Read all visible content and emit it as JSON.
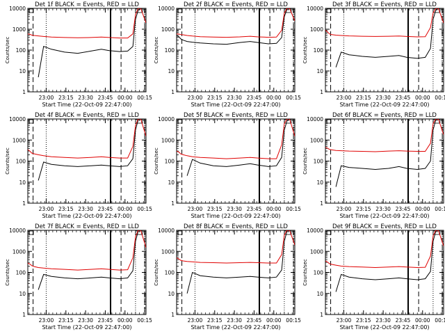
{
  "colors": {
    "events": "#000000",
    "lld": "#e00000",
    "axis": "#000000",
    "background": "#ffffff"
  },
  "chart_data": [
    {
      "type": "line",
      "title": "Det 1f BLACK = Events, RED = LLD",
      "xlabel": "Start Time (22-Oct-09 22:47:00)",
      "ylabel": "Counts/sec",
      "x_ticks": [
        "23:00",
        "23:15",
        "23:30",
        "23:45",
        "00:00",
        "00:15"
      ],
      "y_ticks": [
        "1",
        "10",
        "100",
        "1000",
        "10000"
      ],
      "ylim": [
        1,
        10000
      ],
      "yscale": "log",
      "x": [
        0,
        2,
        3,
        5,
        8,
        12,
        18,
        28,
        38,
        48,
        56,
        62,
        70,
        76,
        80,
        82,
        84,
        86,
        90
      ],
      "series": [
        {
          "name": "Events",
          "values": [
            null,
            null,
            null,
            null,
            5,
            150,
            110,
            80,
            70,
            90,
            110,
            95,
            85,
            90,
            150,
            3000,
            8000,
            10000,
            null
          ]
        },
        {
          "name": "LLD",
          "values": [
            600,
            560,
            520,
            500,
            480,
            450,
            420,
            400,
            390,
            400,
            420,
            400,
            380,
            380,
            600,
            5000,
            10000,
            10000,
            2000
          ]
        }
      ],
      "markers": {
        "dashed": [
          4,
          71,
          89
        ],
        "dotted": [
          14,
          82
        ],
        "solid": [
          63
        ]
      }
    },
    {
      "type": "line",
      "title": "Det 2f BLACK = Events, RED = LLD",
      "xlabel": "Start Time (22-Oct-09 22:47:00)",
      "ylabel": "Counts/sec",
      "x_ticks": [
        "23:00",
        "23:15",
        "23:30",
        "23:45",
        "00:00",
        "00:15"
      ],
      "y_ticks": [
        "1",
        "10",
        "100",
        "1000",
        "10000"
      ],
      "ylim": [
        1,
        10000
      ],
      "yscale": "log",
      "x": [
        0,
        2,
        3,
        5,
        8,
        12,
        18,
        28,
        38,
        48,
        56,
        62,
        70,
        76,
        80,
        82,
        84,
        86,
        90
      ],
      "series": [
        {
          "name": "Events",
          "values": [
            500,
            420,
            350,
            300,
            260,
            240,
            220,
            200,
            190,
            230,
            260,
            230,
            200,
            210,
            400,
            4000,
            9000,
            10000,
            null
          ]
        },
        {
          "name": "LLD",
          "values": [
            600,
            580,
            560,
            540,
            500,
            470,
            440,
            420,
            410,
            430,
            460,
            430,
            410,
            420,
            900,
            6000,
            10000,
            10000,
            2500
          ]
        }
      ],
      "markers": {
        "dashed": [
          4,
          71,
          89
        ],
        "dotted": [
          14,
          82
        ],
        "solid": [
          63
        ]
      }
    },
    {
      "type": "line",
      "title": "Det 3f BLACK = Events, RED = LLD",
      "xlabel": "Start Time (22-Oct-09 22:47:00)",
      "ylabel": "Counts/sec",
      "x_ticks": [
        "23:00",
        "23:15",
        "23:30",
        "23:45",
        "00:00",
        "00:15"
      ],
      "y_ticks": [
        "1",
        "10",
        "100",
        "1000",
        "10000"
      ],
      "ylim": [
        1,
        10000
      ],
      "yscale": "log",
      "x": [
        0,
        2,
        3,
        5,
        8,
        12,
        18,
        28,
        38,
        48,
        56,
        62,
        70,
        76,
        80,
        82,
        84,
        86,
        90
      ],
      "series": [
        {
          "name": "Events",
          "values": [
            null,
            null,
            null,
            null,
            15,
            80,
            60,
            50,
            45,
            50,
            55,
            45,
            40,
            45,
            120,
            3000,
            8000,
            10000,
            null
          ]
        },
        {
          "name": "LLD",
          "values": [
            900,
            700,
            600,
            550,
            520,
            500,
            480,
            460,
            450,
            460,
            470,
            450,
            430,
            440,
            1200,
            6000,
            10000,
            10000,
            2000
          ]
        }
      ],
      "markers": {
        "dashed": [
          4,
          71,
          89
        ],
        "dotted": [
          14,
          82
        ],
        "solid": [
          63
        ]
      }
    },
    {
      "type": "line",
      "title": "Det 4f BLACK = Events, RED = LLD",
      "xlabel": "Start Time (22-Oct-09 22:47:00)",
      "ylabel": "Counts/sec",
      "x_ticks": [
        "23:00",
        "23:15",
        "23:30",
        "23:45",
        "00:00",
        "00:15"
      ],
      "y_ticks": [
        "1",
        "10",
        "100",
        "1000",
        "10000"
      ],
      "ylim": [
        1,
        10000
      ],
      "yscale": "log",
      "x": [
        0,
        2,
        3,
        5,
        8,
        12,
        18,
        28,
        38,
        48,
        56,
        62,
        70,
        76,
        80,
        82,
        84,
        86,
        90
      ],
      "series": [
        {
          "name": "Events",
          "values": [
            null,
            null,
            null,
            null,
            12,
            90,
            70,
            60,
            55,
            60,
            65,
            60,
            55,
            60,
            130,
            3000,
            9000,
            10000,
            null
          ]
        },
        {
          "name": "LLD",
          "values": [
            350,
            280,
            240,
            220,
            200,
            180,
            160,
            150,
            140,
            150,
            160,
            150,
            140,
            140,
            500,
            5000,
            10000,
            10000,
            1500
          ]
        }
      ],
      "markers": {
        "dashed": [
          4,
          71,
          89
        ],
        "dotted": [
          14,
          82
        ],
        "solid": [
          63
        ]
      }
    },
    {
      "type": "line",
      "title": "Det 5f BLACK = Events, RED = LLD",
      "xlabel": "Start Time (22-Oct-09 22:47:00)",
      "ylabel": "Counts/sec",
      "x_ticks": [
        "23:00",
        "23:15",
        "23:30",
        "23:45",
        "00:00",
        "00:15"
      ],
      "y_ticks": [
        "1",
        "10",
        "100",
        "1000",
        "10000"
      ],
      "ylim": [
        1,
        10000
      ],
      "yscale": "log",
      "x": [
        0,
        2,
        3,
        5,
        8,
        12,
        18,
        28,
        38,
        48,
        56,
        62,
        70,
        76,
        80,
        82,
        84,
        86,
        90
      ],
      "series": [
        {
          "name": "Events",
          "values": [
            null,
            null,
            null,
            null,
            20,
            120,
            80,
            60,
            55,
            65,
            75,
            65,
            55,
            60,
            150,
            3000,
            8000,
            10000,
            null
          ]
        },
        {
          "name": "LLD",
          "values": [
            300,
            260,
            220,
            200,
            180,
            160,
            150,
            140,
            130,
            140,
            150,
            140,
            130,
            130,
            600,
            6000,
            10000,
            10000,
            1500
          ]
        }
      ],
      "markers": {
        "dashed": [
          4,
          71,
          89
        ],
        "dotted": [
          14,
          82
        ],
        "solid": [
          63
        ]
      }
    },
    {
      "type": "line",
      "title": "Det 6f BLACK = Events, RED = LLD",
      "xlabel": "Start Time (22-Oct-09 22:47:00)",
      "ylabel": "Counts/sec",
      "x_ticks": [
        "23:00",
        "23:15",
        "23:30",
        "23:45",
        "00:00",
        "00:15"
      ],
      "y_ticks": [
        "1",
        "10",
        "100",
        "1000",
        "10000"
      ],
      "ylim": [
        1,
        10000
      ],
      "yscale": "log",
      "x": [
        0,
        2,
        3,
        5,
        8,
        12,
        18,
        28,
        38,
        48,
        56,
        62,
        70,
        76,
        80,
        82,
        84,
        86,
        90
      ],
      "series": [
        {
          "name": "Events",
          "values": [
            null,
            null,
            null,
            null,
            6,
            60,
            50,
            45,
            40,
            45,
            55,
            45,
            40,
            45,
            100,
            3000,
            9000,
            10000,
            null
          ]
        },
        {
          "name": "LLD",
          "values": [
            450,
            400,
            360,
            340,
            320,
            310,
            300,
            290,
            280,
            300,
            310,
            300,
            290,
            290,
            700,
            6000,
            10000,
            10000,
            1800
          ]
        }
      ],
      "markers": {
        "dashed": [
          4,
          71,
          89
        ],
        "dotted": [
          14,
          82
        ],
        "solid": [
          63
        ]
      }
    },
    {
      "type": "line",
      "title": "Det 7f BLACK = Events, RED = LLD",
      "xlabel": "Start Time (22-Oct-09 22:47:00)",
      "ylabel": "Counts/sec",
      "x_ticks": [
        "23:00",
        "23:15",
        "23:30",
        "23:45",
        "00:00",
        "00:15"
      ],
      "y_ticks": [
        "1",
        "10",
        "100",
        "1000",
        "10000"
      ],
      "ylim": [
        1,
        10000
      ],
      "yscale": "log",
      "x": [
        0,
        2,
        3,
        5,
        8,
        12,
        18,
        28,
        38,
        48,
        56,
        62,
        70,
        76,
        80,
        82,
        84,
        86,
        90
      ],
      "series": [
        {
          "name": "Events",
          "values": [
            null,
            null,
            null,
            null,
            15,
            80,
            65,
            55,
            50,
            55,
            60,
            55,
            50,
            55,
            120,
            3000,
            9000,
            10000,
            null
          ]
        },
        {
          "name": "LLD",
          "values": [
            280,
            240,
            210,
            190,
            170,
            160,
            150,
            140,
            130,
            140,
            150,
            140,
            130,
            135,
            500,
            5000,
            10000,
            10000,
            1500
          ]
        }
      ],
      "markers": {
        "dashed": [
          4,
          71,
          89
        ],
        "dotted": [
          14,
          82
        ],
        "solid": [
          63
        ]
      }
    },
    {
      "type": "line",
      "title": "Det 8f BLACK = Events, RED = LLD",
      "xlabel": "Start Time (22-Oct-09 22:47:00)",
      "ylabel": "Counts/sec",
      "x_ticks": [
        "23:00",
        "23:15",
        "23:30",
        "23:45",
        "00:00",
        "00:15"
      ],
      "y_ticks": [
        "1",
        "10",
        "100",
        "1000",
        "10000"
      ],
      "ylim": [
        1,
        10000
      ],
      "yscale": "log",
      "x": [
        0,
        2,
        3,
        5,
        8,
        12,
        18,
        28,
        38,
        48,
        56,
        62,
        70,
        76,
        80,
        82,
        84,
        86,
        90
      ],
      "series": [
        {
          "name": "Events",
          "values": [
            null,
            null,
            null,
            null,
            10,
            100,
            70,
            60,
            55,
            60,
            65,
            60,
            55,
            60,
            130,
            3000,
            9000,
            10000,
            null
          ]
        },
        {
          "name": "LLD",
          "values": [
            500,
            420,
            380,
            350,
            330,
            320,
            300,
            290,
            280,
            290,
            300,
            290,
            280,
            280,
            700,
            6000,
            10000,
            10000,
            2000
          ]
        }
      ],
      "markers": {
        "dashed": [
          4,
          71,
          89
        ],
        "dotted": [
          14,
          82
        ],
        "solid": [
          63
        ]
      }
    },
    {
      "type": "line",
      "title": "Det 9f BLACK = Events, RED = LLD",
      "xlabel": "Start Time (22-Oct-09 22:47:00)",
      "ylabel": "Counts/sec",
      "x_ticks": [
        "23:00",
        "23:15",
        "23:30",
        "23:45",
        "00:00",
        "00:15"
      ],
      "y_ticks": [
        "1",
        "10",
        "100",
        "1000",
        "10000"
      ],
      "ylim": [
        1,
        10000
      ],
      "yscale": "log",
      "x": [
        0,
        2,
        3,
        5,
        8,
        12,
        18,
        28,
        38,
        48,
        56,
        62,
        70,
        76,
        80,
        82,
        84,
        86,
        90
      ],
      "series": [
        {
          "name": "Events",
          "values": [
            null,
            null,
            null,
            null,
            12,
            80,
            60,
            50,
            45,
            50,
            55,
            50,
            45,
            50,
            110,
            3000,
            9000,
            10000,
            null
          ]
        },
        {
          "name": "LLD",
          "values": [
            350,
            300,
            260,
            240,
            220,
            200,
            190,
            180,
            170,
            180,
            190,
            180,
            170,
            175,
            600,
            5500,
            10000,
            10000,
            1800
          ]
        }
      ],
      "markers": {
        "dashed": [
          4,
          71,
          89
        ],
        "dotted": [
          14,
          82
        ],
        "solid": [
          63
        ]
      }
    }
  ]
}
